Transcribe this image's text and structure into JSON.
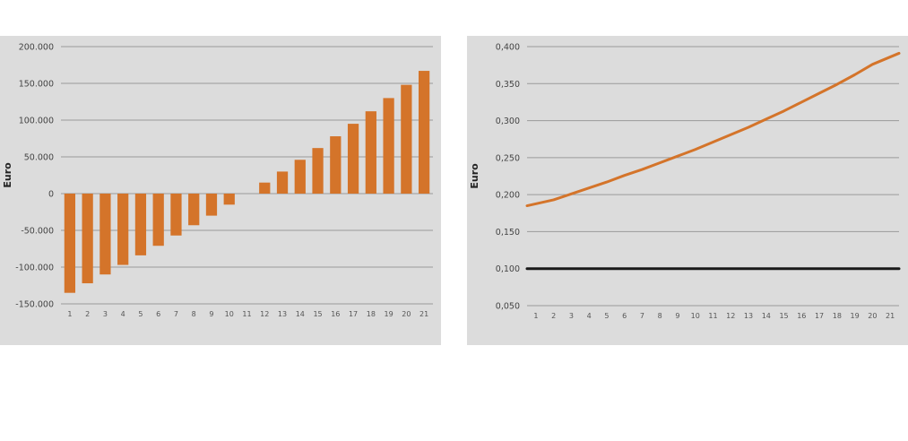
{
  "chart_data": [
    {
      "type": "bar",
      "ylabel": "Euro",
      "ylim": [
        -150000,
        200000
      ],
      "yticks": [
        "-150.000",
        "-100.000",
        "-50.000",
        "0",
        "50.000",
        "100.000",
        "150.000",
        "200.000"
      ],
      "ytick_values": [
        -150000,
        -100000,
        -50000,
        0,
        50000,
        100000,
        150000,
        200000
      ],
      "categories": [
        "1",
        "2",
        "3",
        "4",
        "5",
        "6",
        "7",
        "8",
        "9",
        "10",
        "11",
        "12",
        "13",
        "14",
        "15",
        "16",
        "17",
        "18",
        "19",
        "20",
        "21"
      ],
      "values": [
        -135000,
        -122000,
        -110000,
        -97000,
        -84000,
        -71000,
        -57000,
        -43000,
        -30000,
        -15000,
        0,
        15000,
        30000,
        46000,
        62000,
        78000,
        95000,
        112000,
        130000,
        148000,
        167000
      ],
      "bar_color": "#d4742a",
      "grid": true
    },
    {
      "type": "line",
      "ylabel": "Euro",
      "ylim": [
        0.05,
        0.4
      ],
      "yticks": [
        "0,050",
        "0,100",
        "0,150",
        "0,200",
        "0,250",
        "0,300",
        "0,350",
        "0,400"
      ],
      "ytick_values": [
        0.05,
        0.1,
        0.15,
        0.2,
        0.25,
        0.3,
        0.35,
        0.4
      ],
      "categories": [
        "1",
        "2",
        "3",
        "4",
        "5",
        "6",
        "7",
        "8",
        "9",
        "10",
        "11",
        "12",
        "13",
        "14",
        "15",
        "16",
        "17",
        "18",
        "19",
        "20",
        "21"
      ],
      "series": [
        {
          "values": [
            0.185,
            0.193,
            0.201,
            0.209,
            0.217,
            0.226,
            0.234,
            0.243,
            0.252,
            0.261,
            0.271,
            0.281,
            0.291,
            0.302,
            0.313,
            0.325,
            0.337,
            0.349,
            0.362,
            0.376,
            0.391
          ],
          "color": "#d4742a"
        },
        {
          "values": [
            0.1,
            0.1,
            0.1,
            0.1,
            0.1,
            0.1,
            0.1,
            0.1,
            0.1,
            0.1,
            0.1,
            0.1,
            0.1,
            0.1,
            0.1,
            0.1,
            0.1,
            0.1,
            0.1,
            0.1,
            0.1
          ],
          "color": "#1a1a1a"
        }
      ],
      "grid": true
    }
  ]
}
